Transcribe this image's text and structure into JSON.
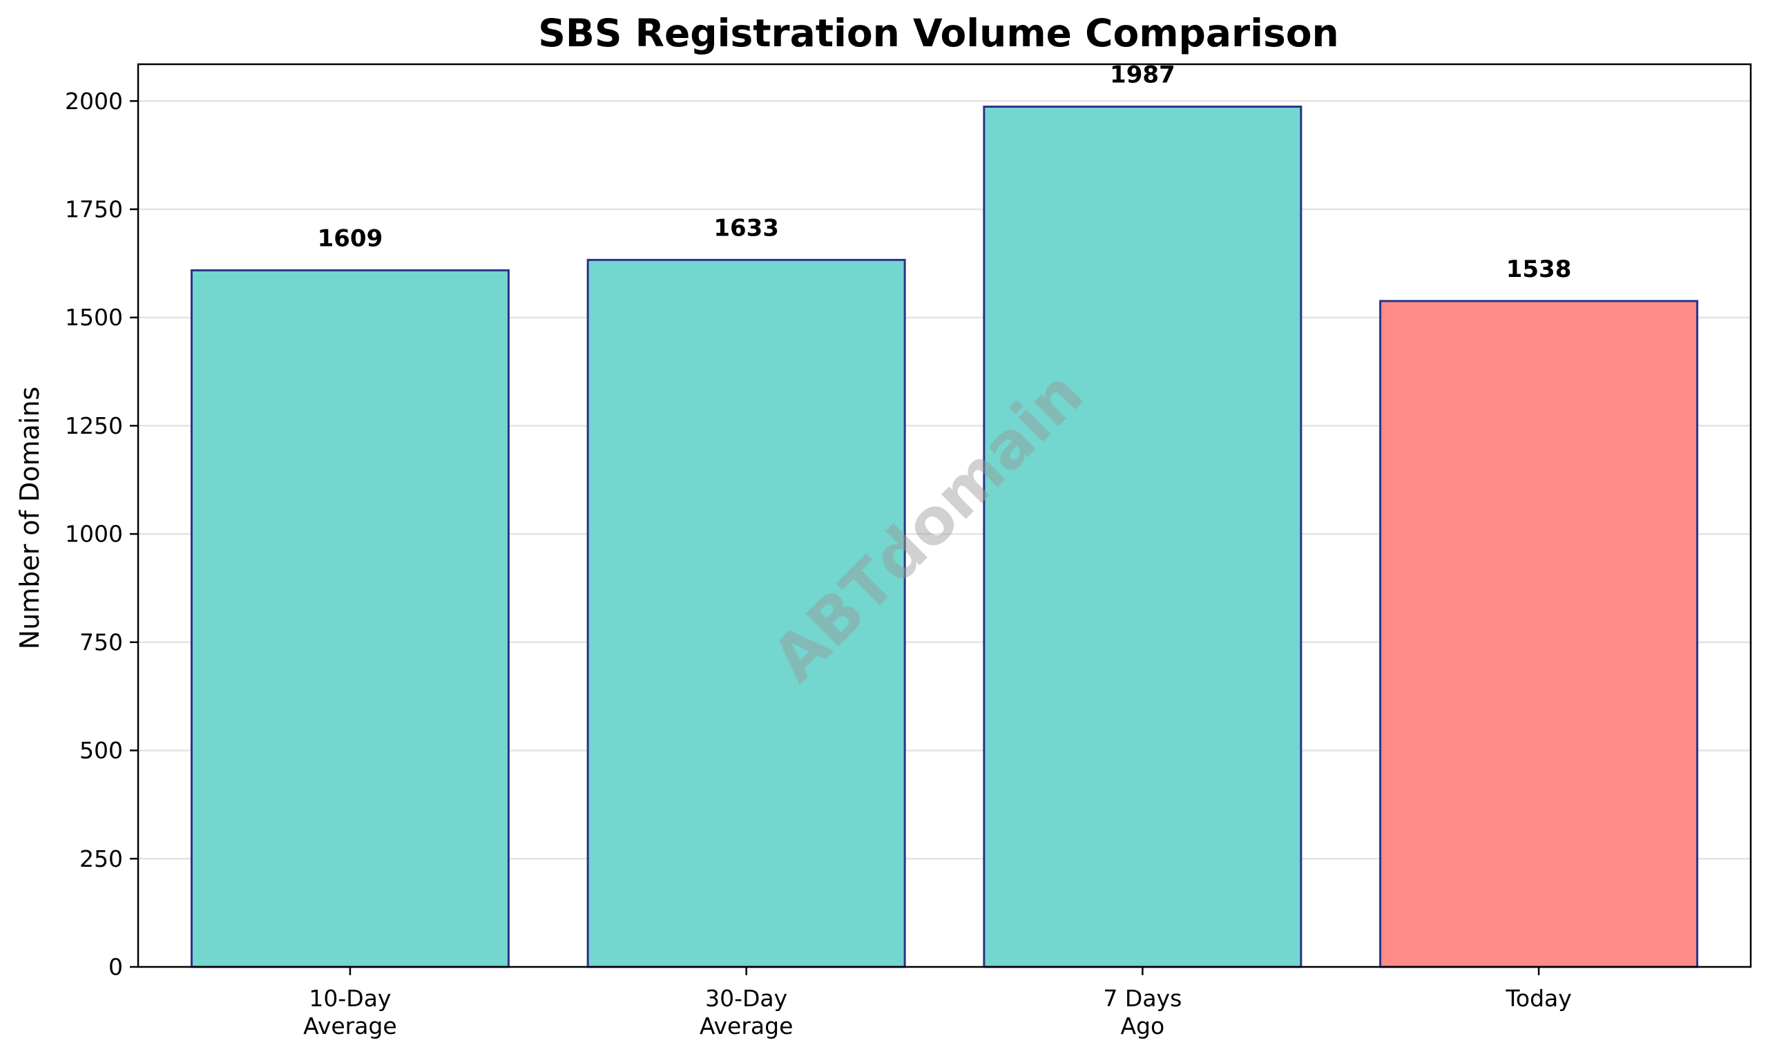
{
  "chart_data": {
    "type": "bar",
    "title": "SBS Registration Volume Comparison",
    "xlabel": "",
    "ylabel": "Number of Domains",
    "categories": [
      [
        "10-Day",
        "Average"
      ],
      [
        "30-Day",
        "Average"
      ],
      [
        "7 Days",
        "Ago"
      ],
      [
        "Today"
      ]
    ],
    "values": [
      1609,
      1633,
      1987,
      1538
    ],
    "data_labels": [
      "1609",
      "1633",
      "1987",
      "1538"
    ],
    "bar_colors": [
      "#73d6cf",
      "#73d6cf",
      "#73d6cf",
      "#ff8a8a"
    ],
    "bar_edge_color": "#2a3388",
    "ylim": [
      0,
      2085
    ],
    "yticks": [
      0,
      250,
      500,
      750,
      1000,
      1250,
      1500,
      1750,
      2000
    ],
    "ytick_labels": [
      "0",
      "250",
      "500",
      "750",
      "1000",
      "1250",
      "1500",
      "1750",
      "2000"
    ],
    "grid": "y",
    "watermark": "ABTdomain"
  }
}
